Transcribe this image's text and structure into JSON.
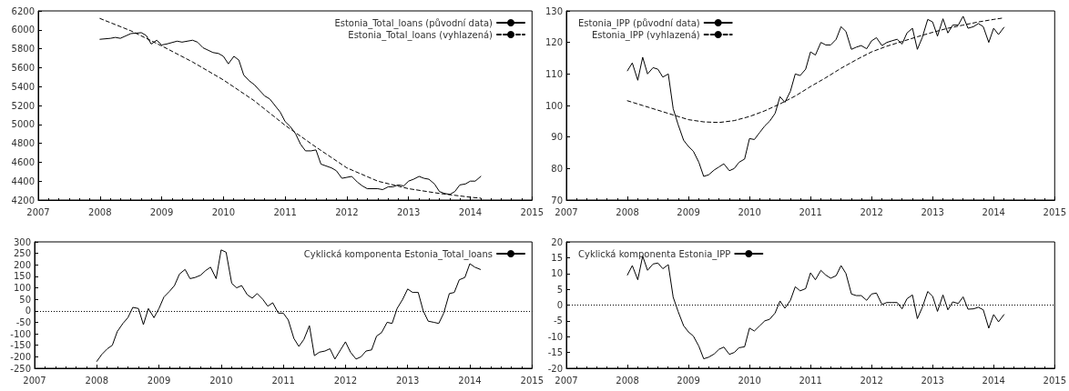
{
  "chart_data": [
    {
      "type": "line",
      "xlim": [
        2007,
        2015
      ],
      "xticks": [
        2007,
        2008,
        2009,
        2010,
        2011,
        2012,
        2013,
        2014,
        2015
      ],
      "ylim": [
        4200,
        6200
      ],
      "yticks": [
        4200,
        4400,
        4600,
        4800,
        5000,
        5200,
        5400,
        5600,
        5800,
        6000,
        6200
      ],
      "grid": false,
      "legend": "top right",
      "marker": "none",
      "series": [
        {
          "name": "Estonia_Total_loans (původní data)",
          "color": "#000000",
          "line_style": "solid",
          "x": [
            2008.0,
            2008.17,
            2008.25,
            2008.33,
            2008.5,
            2008.67,
            2008.75,
            2008.83,
            2008.92,
            2009.0,
            2009.08,
            2009.25,
            2009.33,
            2009.5,
            2009.58,
            2009.67,
            2009.83,
            2009.92,
            2010.0,
            2010.08,
            2010.17,
            2010.25,
            2010.33,
            2010.42,
            2010.5,
            2010.67,
            2010.75,
            2010.92,
            2011.0,
            2011.08,
            2011.17,
            2011.25,
            2011.33,
            2011.42,
            2011.5,
            2011.58,
            2011.75,
            2011.83,
            2011.92,
            2012.0,
            2012.08,
            2012.17,
            2012.25,
            2012.33,
            2012.5,
            2012.58,
            2012.67,
            2012.75,
            2012.83,
            2012.92,
            2013.0,
            2013.08,
            2013.17,
            2013.25,
            2013.33,
            2013.42,
            2013.5,
            2013.58,
            2013.67,
            2013.75,
            2013.83,
            2013.92,
            2014.0,
            2014.08,
            2014.17
          ],
          "values": [
            5900,
            5910,
            5920,
            5910,
            5960,
            5970,
            5940,
            5850,
            5890,
            5840,
            5850,
            5880,
            5870,
            5890,
            5870,
            5810,
            5760,
            5750,
            5720,
            5640,
            5720,
            5680,
            5520,
            5460,
            5420,
            5300,
            5270,
            5130,
            5030,
            4980,
            4900,
            4790,
            4720,
            4720,
            4730,
            4580,
            4540,
            4510,
            4430,
            4440,
            4450,
            4390,
            4350,
            4320,
            4320,
            4310,
            4340,
            4340,
            4360,
            4350,
            4400,
            4420,
            4450,
            4430,
            4420,
            4370,
            4290,
            4270,
            4260,
            4290,
            4360,
            4370,
            4400,
            4400,
            4450
          ]
        },
        {
          "name": "Estonia_Total_loans (vyhlazená)",
          "color": "#000000",
          "line_style": "dashed",
          "x": [
            2008.0,
            2008.5,
            2009.0,
            2009.5,
            2010.0,
            2010.5,
            2011.0,
            2011.5,
            2012.0,
            2012.5,
            2013.0,
            2013.5,
            2014.0,
            2014.17
          ],
          "values": [
            6120,
            5990,
            5830,
            5660,
            5470,
            5250,
            4990,
            4760,
            4540,
            4400,
            4320,
            4270,
            4230,
            4220
          ]
        }
      ]
    },
    {
      "type": "line",
      "xlim": [
        2007,
        2015
      ],
      "xticks": [
        2007,
        2008,
        2009,
        2010,
        2011,
        2012,
        2013,
        2014,
        2015
      ],
      "ylim": [
        70,
        130
      ],
      "yticks": [
        70,
        80,
        90,
        100,
        110,
        120,
        130
      ],
      "grid": false,
      "legend": "top left",
      "marker": "none",
      "series": [
        {
          "name": "Estonia_IPP (původní data)",
          "color": "#000000",
          "line_style": "solid",
          "x": [
            2008.0,
            2008.08,
            2008.17,
            2008.25,
            2008.33,
            2008.42,
            2008.5,
            2008.58,
            2008.67,
            2008.75,
            2008.83,
            2008.92,
            2009.0,
            2009.08,
            2009.17,
            2009.25,
            2009.33,
            2009.42,
            2009.5,
            2009.58,
            2009.67,
            2009.75,
            2009.83,
            2009.92,
            2010.0,
            2010.08,
            2010.17,
            2010.25,
            2010.33,
            2010.42,
            2010.5,
            2010.58,
            2010.67,
            2010.75,
            2010.83,
            2010.92,
            2011.0,
            2011.08,
            2011.17,
            2011.25,
            2011.33,
            2011.42,
            2011.5,
            2011.58,
            2011.67,
            2011.75,
            2011.83,
            2011.92,
            2012.0,
            2012.08,
            2012.17,
            2012.25,
            2012.33,
            2012.42,
            2012.5,
            2012.58,
            2012.67,
            2012.75,
            2012.83,
            2012.92,
            2013.0,
            2013.08,
            2013.17,
            2013.25,
            2013.33,
            2013.42,
            2013.5,
            2013.58,
            2013.67,
            2013.75,
            2013.83,
            2013.92,
            2014.0,
            2014.08,
            2014.17
          ],
          "values": [
            111,
            113.5,
            108,
            115.3,
            110,
            112,
            111.5,
            109,
            110,
            99,
            94,
            89,
            87,
            85.5,
            82,
            77.5,
            78,
            79.5,
            80.5,
            81.5,
            79.3,
            80,
            82,
            83,
            89.5,
            89.2,
            91.5,
            93.5,
            95,
            97.5,
            102.8,
            101,
            104.5,
            110,
            109.5,
            111.5,
            117,
            116,
            120,
            119.2,
            119.2,
            121,
            125,
            123.5,
            117.8,
            118.5,
            119,
            118,
            120.5,
            121.5,
            119,
            120,
            120.5,
            121,
            119.5,
            123,
            124.5,
            117.8,
            121.5,
            127.3,
            126.5,
            122,
            127.5,
            123,
            125.5,
            125.5,
            128.3,
            124.5,
            125,
            126,
            125,
            120,
            124.5,
            122.5,
            124.8
          ]
        },
        {
          "name": "Estonia_IPP (vyhlazená)",
          "color": "#000000",
          "line_style": "dashed",
          "x": [
            2008.0,
            2008.25,
            2008.5,
            2008.75,
            2009.0,
            2009.25,
            2009.5,
            2009.75,
            2010.0,
            2010.25,
            2010.5,
            2010.75,
            2011.0,
            2011.25,
            2011.5,
            2011.75,
            2012.0,
            2012.25,
            2012.5,
            2012.75,
            2013.0,
            2013.25,
            2013.5,
            2013.75,
            2014.0,
            2014.17
          ],
          "values": [
            101.5,
            100,
            98.5,
            97,
            95.5,
            94.8,
            94.6,
            95.2,
            96.5,
            98.3,
            100.5,
            103,
            106,
            108.8,
            111.8,
            114.5,
            117,
            118.8,
            120.3,
            121.8,
            123.2,
            124.5,
            125.5,
            126.5,
            127.3,
            127.8
          ]
        }
      ]
    },
    {
      "type": "line",
      "xlim": [
        2007,
        2015
      ],
      "xticks": [
        2007,
        2008,
        2009,
        2010,
        2011,
        2012,
        2013,
        2014,
        2015
      ],
      "ylim": [
        -250,
        300
      ],
      "yticks": [
        -250,
        -200,
        -150,
        -100,
        -50,
        0,
        50,
        100,
        150,
        200,
        250,
        300
      ],
      "grid": false,
      "legend": "top right",
      "marker": "none",
      "ref_lines": [
        {
          "axis": "y",
          "value": 0,
          "line_style": "dotted"
        }
      ],
      "series": [
        {
          "name": "Cyklická komponenta Estonia_Total_loans",
          "color": "#000000",
          "line_style": "solid",
          "x": [
            2008.0,
            2008.08,
            2008.17,
            2008.25,
            2008.33,
            2008.42,
            2008.5,
            2008.58,
            2008.67,
            2008.75,
            2008.83,
            2008.92,
            2009.0,
            2009.08,
            2009.17,
            2009.25,
            2009.33,
            2009.42,
            2009.5,
            2009.58,
            2009.67,
            2009.75,
            2009.83,
            2009.92,
            2010.0,
            2010.08,
            2010.17,
            2010.25,
            2010.33,
            2010.42,
            2010.5,
            2010.58,
            2010.67,
            2010.75,
            2010.83,
            2010.92,
            2011.0,
            2011.08,
            2011.17,
            2011.25,
            2011.33,
            2011.42,
            2011.5,
            2011.58,
            2011.67,
            2011.75,
            2011.83,
            2011.92,
            2012.0,
            2012.08,
            2012.17,
            2012.25,
            2012.33,
            2012.42,
            2012.5,
            2012.58,
            2012.67,
            2012.75,
            2012.83,
            2012.92,
            2013.0,
            2013.08,
            2013.17,
            2013.25,
            2013.33,
            2013.42,
            2013.5,
            2013.58,
            2013.67,
            2013.75,
            2013.83,
            2013.92,
            2014.0,
            2014.08,
            2014.17
          ],
          "values": [
            -220,
            -190,
            -165,
            -150,
            -90,
            -55,
            -30,
            15,
            10,
            -60,
            10,
            -30,
            10,
            60,
            85,
            110,
            160,
            180,
            140,
            145,
            155,
            175,
            190,
            140,
            265,
            255,
            120,
            100,
            110,
            70,
            55,
            75,
            50,
            20,
            35,
            -10,
            -10,
            -40,
            -120,
            -155,
            -125,
            -65,
            -195,
            -180,
            -175,
            -165,
            -210,
            -170,
            -135,
            -180,
            -210,
            -200,
            -175,
            -170,
            -110,
            -95,
            -50,
            -55,
            10,
            50,
            95,
            80,
            80,
            0,
            -45,
            -50,
            -55,
            -10,
            75,
            80,
            135,
            145,
            205,
            190,
            180
          ]
        }
      ]
    },
    {
      "type": "line",
      "xlim": [
        2007,
        2015
      ],
      "xticks": [
        2007,
        2008,
        2009,
        2010,
        2011,
        2012,
        2013,
        2014,
        2015
      ],
      "ylim": [
        -20,
        20
      ],
      "yticks": [
        -20,
        -15,
        -10,
        -5,
        0,
        5,
        10,
        15,
        20
      ],
      "grid": false,
      "legend": "top left",
      "marker": "none",
      "ref_lines": [
        {
          "axis": "y",
          "value": 0,
          "line_style": "dotted"
        }
      ],
      "series": [
        {
          "name": "Cyklická komponenta Estonia_IPP",
          "color": "#000000",
          "line_style": "solid",
          "x": [
            2008.0,
            2008.08,
            2008.17,
            2008.25,
            2008.33,
            2008.42,
            2008.5,
            2008.58,
            2008.67,
            2008.75,
            2008.83,
            2008.92,
            2009.0,
            2009.08,
            2009.17,
            2009.25,
            2009.33,
            2009.42,
            2009.5,
            2009.58,
            2009.67,
            2009.75,
            2009.83,
            2009.92,
            2010.0,
            2010.08,
            2010.17,
            2010.25,
            2010.33,
            2010.42,
            2010.5,
            2010.58,
            2010.67,
            2010.75,
            2010.83,
            2010.92,
            2011.0,
            2011.08,
            2011.17,
            2011.25,
            2011.33,
            2011.42,
            2011.5,
            2011.58,
            2011.67,
            2011.75,
            2011.83,
            2011.92,
            2012.0,
            2012.08,
            2012.17,
            2012.25,
            2012.33,
            2012.42,
            2012.5,
            2012.58,
            2012.67,
            2012.75,
            2012.83,
            2012.92,
            2013.0,
            2013.08,
            2013.17,
            2013.25,
            2013.33,
            2013.42,
            2013.5,
            2013.58,
            2013.67,
            2013.75,
            2013.83,
            2013.92,
            2014.0,
            2014.08,
            2014.17
          ],
          "values": [
            9.5,
            12.5,
            8,
            15.5,
            11,
            13,
            13.3,
            11.5,
            12.8,
            2.5,
            -2,
            -6.5,
            -8.5,
            -9.8,
            -13,
            -17,
            -16.5,
            -15.5,
            -14,
            -13.3,
            -15.6,
            -15,
            -13.5,
            -13.2,
            -7.3,
            -8.2,
            -6.5,
            -5,
            -4.5,
            -2.5,
            1.3,
            -1,
            1.5,
            5.8,
            4.5,
            5.2,
            10.2,
            8,
            11,
            9.5,
            8.5,
            9.3,
            12.5,
            10,
            3.5,
            3,
            3,
            1.5,
            3.5,
            3.8,
            0.2,
            0.8,
            0.8,
            0.8,
            -1.2,
            2,
            3.2,
            -4.3,
            -0.8,
            4.3,
            2.8,
            -2,
            3.2,
            -1.5,
            1,
            0.5,
            2.6,
            -1.3,
            -1.2,
            -0.7,
            -1.5,
            -7.3,
            -3,
            -5.3,
            -3
          ]
        }
      ]
    }
  ]
}
